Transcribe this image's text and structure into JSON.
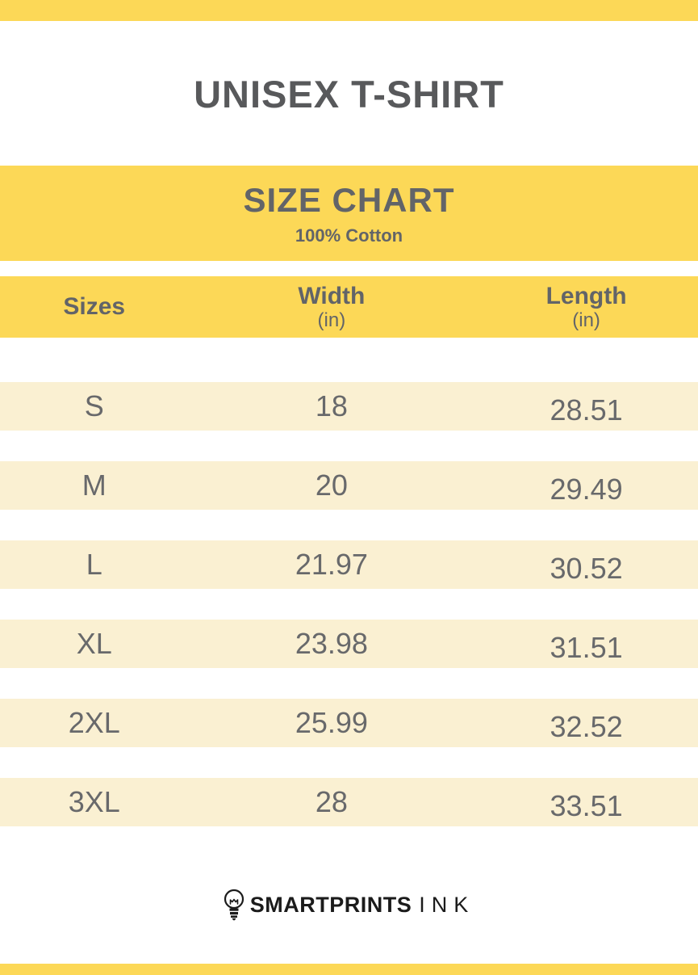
{
  "header": {
    "title": "UNISEX T-SHIRT"
  },
  "banner": {
    "title": "SIZE CHART",
    "subtitle": "100% Cotton"
  },
  "table": {
    "columns": [
      {
        "label": "Sizes",
        "unit": ""
      },
      {
        "label": "Width",
        "unit": "(in)"
      },
      {
        "label": "Length",
        "unit": "(in)"
      }
    ],
    "rows": [
      [
        "S",
        "18",
        "28.51"
      ],
      [
        "M",
        "20",
        "29.49"
      ],
      [
        "L",
        "21.97",
        "30.52"
      ],
      [
        "XL",
        "23.98",
        "31.51"
      ],
      [
        "2XL",
        "25.99",
        "32.52"
      ],
      [
        "3XL",
        "28",
        "33.51"
      ]
    ]
  },
  "footer": {
    "brand_bold": "SMARTPRINTS",
    "brand_light": "INK",
    "logo_icon": "lightbulb-icon"
  },
  "colors": {
    "yellow": "#FCD857",
    "cream": "#FAF0D2",
    "title_gray": "#58595B",
    "header_gray": "#626468",
    "text_gray": "#68696B",
    "ink_black": "#1B1B1B"
  },
  "chart_data": {
    "type": "table",
    "title": "SIZE CHART",
    "subtitle": "100% Cotton",
    "product": "UNISEX T-SHIRT",
    "columns": [
      "Sizes",
      "Width (in)",
      "Length (in)"
    ],
    "rows": [
      [
        "S",
        18,
        28.51
      ],
      [
        "M",
        20,
        29.49
      ],
      [
        "L",
        21.97,
        30.52
      ],
      [
        "XL",
        23.98,
        31.51
      ],
      [
        "2XL",
        25.99,
        32.52
      ],
      [
        "3XL",
        28,
        33.51
      ]
    ]
  }
}
